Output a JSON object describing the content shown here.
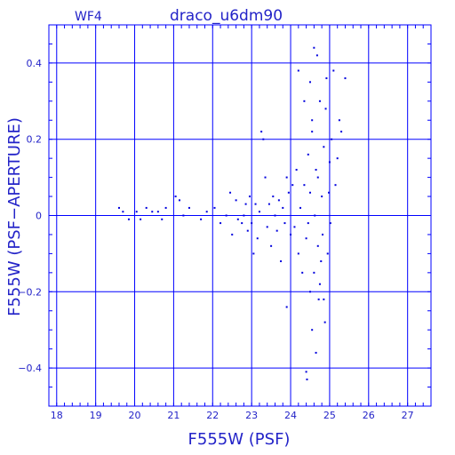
{
  "header": {
    "chip_label": "WF4",
    "title": "draco_u6dm90"
  },
  "colors": {
    "axis": "#0000ff",
    "text": "#2323c8",
    "points": "#0000dd"
  },
  "chart_data": {
    "type": "scatter",
    "xlabel": "F555W (PSF)",
    "ylabel": "F555W (PSF−APERTURE)",
    "xlim": [
      17.8,
      27.6
    ],
    "ylim": [
      -0.5,
      0.5
    ],
    "xticks": [
      18,
      19,
      20,
      21,
      22,
      23,
      24,
      25,
      26,
      27
    ],
    "yticks": [
      -0.4,
      -0.2,
      0,
      0.2,
      0.4
    ],
    "xtick_labels": [
      "18",
      "19",
      "20",
      "21",
      "22",
      "23",
      "24",
      "25",
      "26",
      "27"
    ],
    "ytick_labels": [
      "−0.4",
      "−0.2",
      "0",
      "0.2",
      "0.4"
    ],
    "grid": true,
    "points": [
      [
        19.6,
        0.02
      ],
      [
        19.7,
        0.01
      ],
      [
        19.85,
        -0.01
      ],
      [
        20.05,
        0.01
      ],
      [
        20.15,
        -0.01
      ],
      [
        20.3,
        0.02
      ],
      [
        20.45,
        0.01
      ],
      [
        20.6,
        0.01
      ],
      [
        20.7,
        -0.01
      ],
      [
        20.8,
        0.02
      ],
      [
        21.05,
        0.05
      ],
      [
        21.15,
        0.04
      ],
      [
        21.25,
        0.0
      ],
      [
        21.4,
        0.02
      ],
      [
        21.7,
        -0.01
      ],
      [
        21.85,
        0.01
      ],
      [
        22.05,
        0.02
      ],
      [
        22.2,
        -0.02
      ],
      [
        22.35,
        0.0
      ],
      [
        22.45,
        0.06
      ],
      [
        22.5,
        -0.05
      ],
      [
        22.6,
        0.04
      ],
      [
        22.65,
        -0.01
      ],
      [
        22.75,
        -0.02
      ],
      [
        22.8,
        0.0
      ],
      [
        22.85,
        0.03
      ],
      [
        22.9,
        -0.04
      ],
      [
        22.95,
        0.05
      ],
      [
        23.0,
        -0.02
      ],
      [
        23.05,
        -0.1
      ],
      [
        23.1,
        0.03
      ],
      [
        23.15,
        -0.06
      ],
      [
        23.2,
        0.01
      ],
      [
        23.25,
        0.22
      ],
      [
        23.3,
        0.2
      ],
      [
        23.35,
        0.1
      ],
      [
        23.4,
        -0.03
      ],
      [
        23.45,
        0.03
      ],
      [
        23.5,
        -0.08
      ],
      [
        23.55,
        0.05
      ],
      [
        23.6,
        0.0
      ],
      [
        23.65,
        -0.04
      ],
      [
        23.7,
        0.04
      ],
      [
        23.75,
        -0.12
      ],
      [
        23.8,
        0.02
      ],
      [
        23.85,
        -0.02
      ],
      [
        23.9,
        0.1
      ],
      [
        23.95,
        0.06
      ],
      [
        24.0,
        -0.05
      ],
      [
        24.05,
        0.08
      ],
      [
        24.1,
        -0.03
      ],
      [
        24.15,
        0.12
      ],
      [
        24.2,
        -0.1
      ],
      [
        24.25,
        0.02
      ],
      [
        24.3,
        -0.15
      ],
      [
        23.9,
        -0.24
      ],
      [
        24.2,
        0.38
      ],
      [
        24.35,
        0.3
      ],
      [
        24.4,
        -0.41
      ],
      [
        24.42,
        -0.43
      ],
      [
        24.45,
        0.16
      ],
      [
        24.5,
        -0.2
      ],
      [
        24.5,
        0.35
      ],
      [
        24.55,
        0.22
      ],
      [
        24.55,
        -0.3
      ],
      [
        24.6,
        0.44
      ],
      [
        24.62,
        0.0
      ],
      [
        24.65,
        -0.36
      ],
      [
        24.68,
        0.42
      ],
      [
        24.7,
        0.1
      ],
      [
        24.72,
        -0.22
      ],
      [
        24.75,
        0.3
      ],
      [
        24.78,
        -0.12
      ],
      [
        24.8,
        0.05
      ],
      [
        24.82,
        -0.05
      ],
      [
        24.85,
        0.18
      ],
      [
        24.88,
        -0.28
      ],
      [
        24.9,
        0.28
      ],
      [
        24.92,
        0.36
      ],
      [
        24.95,
        -0.1
      ],
      [
        24.98,
        0.06
      ],
      [
        25.0,
        0.14
      ],
      [
        25.02,
        -0.02
      ],
      [
        25.05,
        0.2
      ],
      [
        25.1,
        0.38
      ],
      [
        25.15,
        0.08
      ],
      [
        25.2,
        0.15
      ],
      [
        25.25,
        0.25
      ],
      [
        25.3,
        0.22
      ],
      [
        25.4,
        0.36
      ],
      [
        24.5,
        0.06
      ],
      [
        24.4,
        -0.06
      ],
      [
        24.6,
        -0.15
      ],
      [
        24.7,
        -0.08
      ],
      [
        24.35,
        0.08
      ],
      [
        24.65,
        0.12
      ],
      [
        24.75,
        -0.18
      ],
      [
        24.55,
        0.25
      ],
      [
        24.85,
        -0.22
      ],
      [
        24.45,
        -0.02
      ]
    ]
  }
}
